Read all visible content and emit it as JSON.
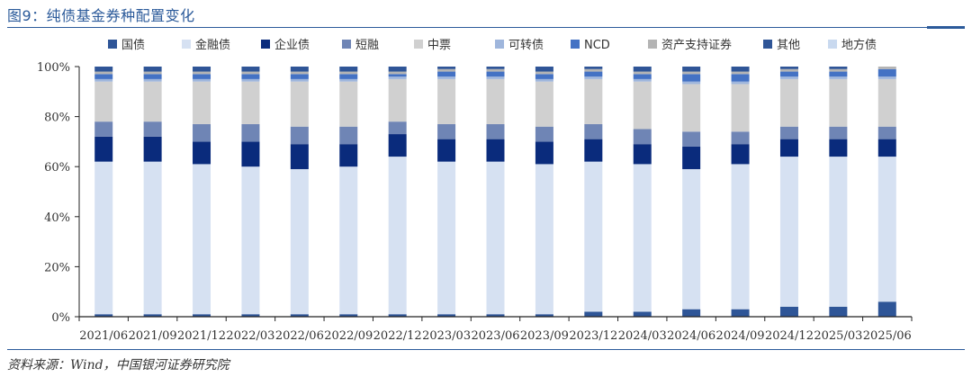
{
  "header": {
    "title": "图9：纯债基金券种配置变化"
  },
  "footer": {
    "source": "资料来源：Wind，中国银河证券研究院"
  },
  "colors": {
    "国债": "#2e5597",
    "金融债": "#d6e1f2",
    "企业债": "#0a2b7c",
    "短融": "#6f85b5",
    "中票": "#d0d0d0",
    "可转债": "#9fb6dc",
    "NCD": "#4472c4",
    "资产支持证券": "#b4b4b4",
    "其他": "#2f5597",
    "地方债": "#c9d9ef"
  },
  "chart_data": {
    "type": "bar",
    "stacked": true,
    "title": "",
    "xlabel": "",
    "ylabel": "",
    "ylim": [
      0,
      1
    ],
    "yticks": [
      "0%",
      "20%",
      "40%",
      "60%",
      "80%",
      "100%"
    ],
    "legend_position": "top",
    "grid": false,
    "categories": [
      "2021/06",
      "2021/09",
      "2021/12",
      "2022/03",
      "2022/06",
      "2022/09",
      "2022/12",
      "2023/03",
      "2023/06",
      "2023/09",
      "2023/12",
      "2024/03",
      "2024/06",
      "2024/09",
      "2024/12",
      "2025/03",
      "2025/06"
    ],
    "series": [
      {
        "name": "国债",
        "values": [
          0.01,
          0.01,
          0.01,
          0.01,
          0.01,
          0.01,
          0.01,
          0.01,
          0.01,
          0.01,
          0.02,
          0.02,
          0.03,
          0.03,
          0.04,
          0.04,
          0.06
        ]
      },
      {
        "name": "金融债",
        "values": [
          0.61,
          0.61,
          0.6,
          0.59,
          0.58,
          0.59,
          0.63,
          0.61,
          0.61,
          0.6,
          0.6,
          0.59,
          0.56,
          0.58,
          0.6,
          0.6,
          0.58
        ]
      },
      {
        "name": "企业债",
        "values": [
          0.1,
          0.1,
          0.09,
          0.1,
          0.1,
          0.09,
          0.09,
          0.09,
          0.09,
          0.09,
          0.09,
          0.08,
          0.09,
          0.08,
          0.07,
          0.07,
          0.07
        ]
      },
      {
        "name": "短融",
        "values": [
          0.06,
          0.06,
          0.07,
          0.07,
          0.07,
          0.07,
          0.05,
          0.06,
          0.06,
          0.06,
          0.06,
          0.06,
          0.06,
          0.05,
          0.05,
          0.05,
          0.05
        ]
      },
      {
        "name": "中票",
        "values": [
          0.16,
          0.16,
          0.17,
          0.17,
          0.18,
          0.18,
          0.17,
          0.18,
          0.18,
          0.18,
          0.18,
          0.19,
          0.19,
          0.19,
          0.19,
          0.19,
          0.19
        ]
      },
      {
        "name": "可转债",
        "values": [
          0.01,
          0.01,
          0.01,
          0.01,
          0.01,
          0.01,
          0.01,
          0.01,
          0.01,
          0.01,
          0.01,
          0.01,
          0.01,
          0.01,
          0.01,
          0.01,
          0.01
        ]
      },
      {
        "name": "NCD",
        "values": [
          0.02,
          0.02,
          0.02,
          0.02,
          0.02,
          0.02,
          0.01,
          0.02,
          0.02,
          0.02,
          0.02,
          0.02,
          0.03,
          0.03,
          0.02,
          0.02,
          0.03
        ]
      },
      {
        "name": "资产支持证券",
        "values": [
          0.01,
          0.01,
          0.01,
          0.01,
          0.01,
          0.01,
          0.01,
          0.01,
          0.01,
          0.01,
          0.01,
          0.01,
          0.01,
          0.01,
          0.01,
          0.01,
          0.01
        ]
      },
      {
        "name": "其他",
        "values": [
          0.02,
          0.02,
          0.02,
          0.02,
          0.02,
          0.02,
          0.02,
          0.01,
          0.01,
          0.02,
          0.01,
          0.02,
          0.02,
          0.02,
          0.01,
          0.01,
          0.0
        ]
      },
      {
        "name": "地方债",
        "values": [
          0.0,
          0.0,
          0.0,
          0.0,
          0.0,
          0.0,
          0.0,
          0.0,
          0.0,
          0.0,
          0.0,
          0.0,
          0.0,
          0.0,
          0.0,
          0.0,
          0.0
        ]
      }
    ]
  }
}
